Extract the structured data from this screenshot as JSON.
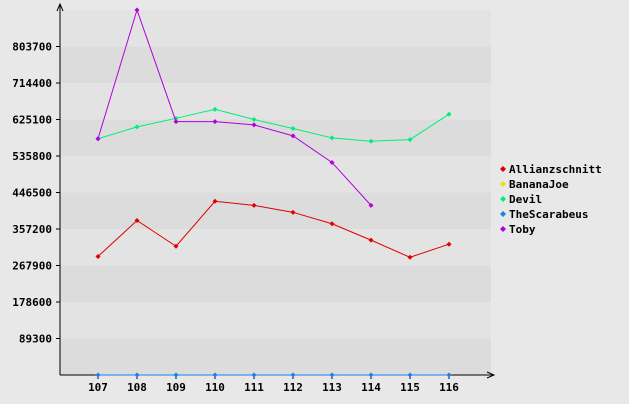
{
  "chart_data": {
    "type": "line",
    "title": "",
    "xlabel": "",
    "ylabel": "",
    "x": [
      107,
      108,
      109,
      110,
      111,
      112,
      113,
      114,
      115,
      116
    ],
    "y_ticks": [
      89300,
      178600,
      267900,
      357200,
      446500,
      535800,
      625100,
      714400,
      803700
    ],
    "ylim": [
      0,
      893000
    ],
    "grid": true,
    "legend_position": "right",
    "series": [
      {
        "name": "Allianzschnitt",
        "color": "#e00000",
        "values": [
          290000,
          378000,
          315000,
          425000,
          415000,
          398000,
          370000,
          330000,
          288000,
          320000
        ]
      },
      {
        "name": "BananaJoe",
        "color": "#e6e600",
        "values": [
          null,
          null,
          null,
          null,
          null,
          null,
          null,
          null,
          null,
          null
        ]
      },
      {
        "name": "Devil",
        "color": "#00ee77",
        "values": [
          578000,
          607000,
          628000,
          650000,
          625000,
          603000,
          580000,
          572000,
          576000,
          638000
        ]
      },
      {
        "name": "TheScarabeus",
        "color": "#1a7fe6",
        "values": [
          0,
          0,
          0,
          0,
          0,
          0,
          0,
          0,
          0,
          0
        ]
      },
      {
        "name": "Toby",
        "color": "#b000dd",
        "values": [
          578000,
          893000,
          620000,
          620000,
          612000,
          585000,
          520000,
          415000,
          null,
          null
        ]
      }
    ]
  }
}
